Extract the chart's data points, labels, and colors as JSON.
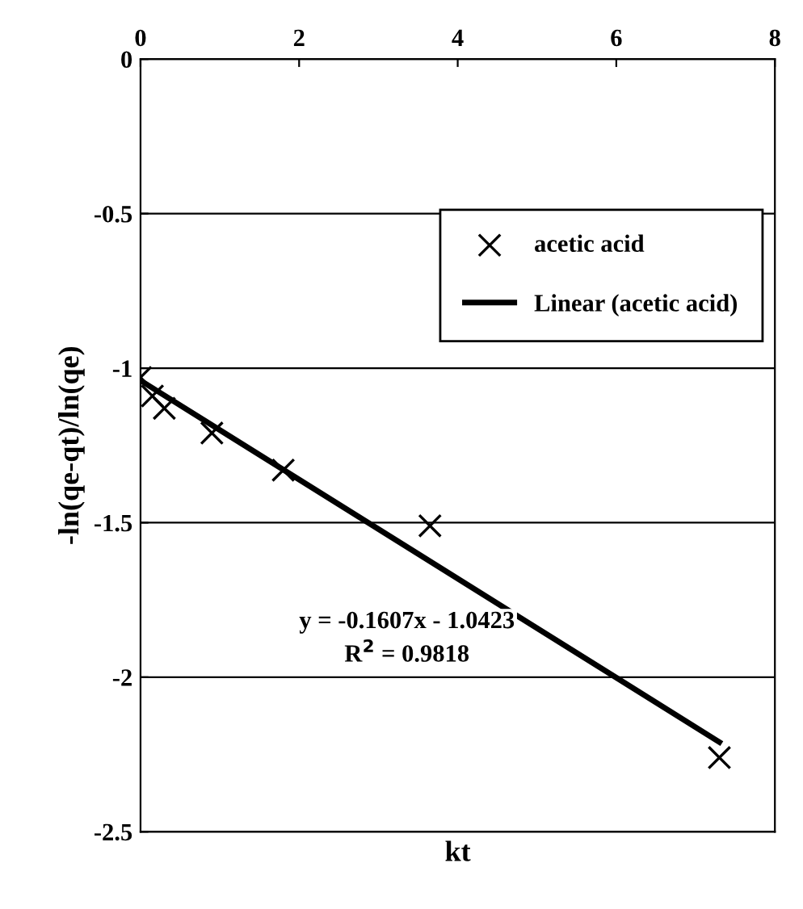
{
  "chart_data": {
    "type": "scatter",
    "xlabel": "kt",
    "ylabel": "-ln(qe-qt)/ln(qe)",
    "xlim": [
      0,
      8
    ],
    "xticks": [
      0,
      2,
      4,
      6,
      8
    ],
    "ylim": [
      -2.5,
      0
    ],
    "yticks": [
      -2.5,
      -2,
      -1.5,
      -1,
      -0.5,
      0
    ],
    "grid": "y",
    "legend": "right",
    "series": [
      {
        "name": "acetic acid",
        "marker": "cross",
        "color": "#000000",
        "x": [
          0,
          0.15,
          0.3,
          0.9,
          1.8,
          3.65,
          7.3
        ],
        "values": [
          -1.03,
          -1.09,
          -1.13,
          -1.21,
          -1.33,
          -1.51,
          -2.26
        ]
      },
      {
        "name": "Linear (acetic acid)",
        "type": "line",
        "color": "#000000",
        "line_style": "solid",
        "x": [
          0,
          7.3
        ],
        "values": [
          -1.04,
          -2.21
        ]
      }
    ],
    "annotations": [
      "y = -0.1607x - 1.0423\nR$^{2}$ = 0.9818"
    ]
  }
}
